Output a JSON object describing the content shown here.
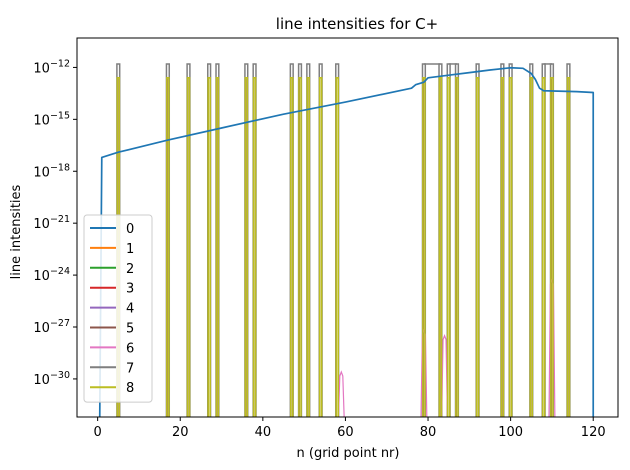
{
  "chart_data": {
    "type": "line",
    "title": "line intensities for C+",
    "xlabel": "n (grid point nr)",
    "ylabel": "line intensities",
    "xlim": [
      -5,
      126
    ],
    "ylim_log10": [
      -32.2,
      -10.3
    ],
    "yscale": "log",
    "x_ticks": [
      0,
      20,
      40,
      60,
      80,
      100,
      120
    ],
    "x_tick_labels": [
      "0",
      "20",
      "40",
      "60",
      "80",
      "100",
      "120"
    ],
    "y_ticks_log10": [
      -30,
      -27,
      -24,
      -21,
      -18,
      -15,
      -12
    ],
    "y_tick_base": "10",
    "y_tick_exponents": [
      "−30",
      "−27",
      "−24",
      "−21",
      "−18",
      "−15",
      "−12"
    ],
    "legend_position": "lower-left",
    "grid": false,
    "spike_x": [
      5,
      17,
      22,
      27,
      29,
      36,
      38,
      47,
      49,
      51,
      54,
      58,
      79,
      83,
      85,
      87,
      92,
      98,
      100,
      105,
      108,
      110,
      114
    ],
    "spike_top_log10": -12.6,
    "gray_top_log10": -11.8,
    "gray_bridges": [
      [
        79,
        83
      ],
      [
        85,
        87
      ],
      [
        108,
        110
      ]
    ],
    "series": [
      {
        "name": "0",
        "color": "#1f77b4",
        "points_log10": [
          [
            0.5,
            -33
          ],
          [
            1,
            -17.2
          ],
          [
            5,
            -16.9
          ],
          [
            17,
            -16.2
          ],
          [
            30,
            -15.5
          ],
          [
            45,
            -14.7
          ],
          [
            60,
            -14.0
          ],
          [
            76,
            -13.2
          ],
          [
            77,
            -13.0
          ],
          [
            79,
            -12.85
          ],
          [
            80,
            -12.6
          ],
          [
            85,
            -12.45
          ],
          [
            90,
            -12.3
          ],
          [
            95,
            -12.15
          ],
          [
            100,
            -12.02
          ],
          [
            103,
            -12.05
          ],
          [
            105,
            -12.35
          ],
          [
            106,
            -12.7
          ],
          [
            107,
            -13.2
          ],
          [
            108,
            -13.35
          ],
          [
            116,
            -13.4
          ],
          [
            120,
            -13.45
          ],
          [
            120,
            -33
          ]
        ]
      },
      {
        "name": "1",
        "color": "#ff7f0e"
      },
      {
        "name": "2",
        "color": "#2ca02c"
      },
      {
        "name": "3",
        "color": "#d62728"
      },
      {
        "name": "4",
        "color": "#9467bd"
      },
      {
        "name": "5",
        "color": "#8c564b"
      },
      {
        "name": "6",
        "color": "#e377c2",
        "bumps_log10": [
          [
            59,
            -29.6
          ],
          [
            79,
            -27.2
          ],
          [
            84,
            -27.5
          ],
          [
            110,
            -24.3
          ]
        ]
      },
      {
        "name": "7",
        "color": "#7f7f7f"
      },
      {
        "name": "8",
        "color": "#bcbd22"
      }
    ]
  }
}
